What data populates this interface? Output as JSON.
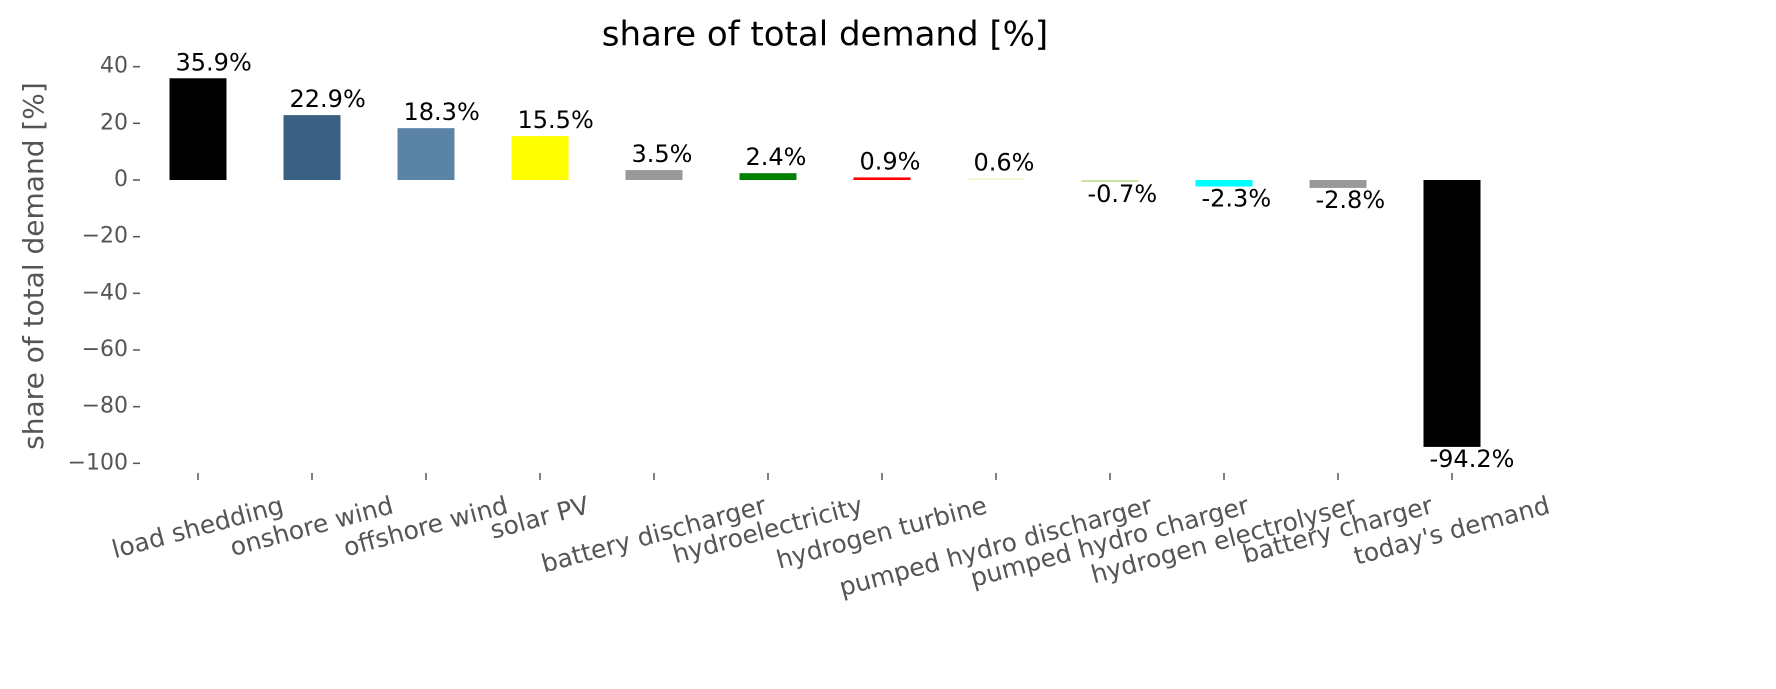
{
  "chart_data": {
    "type": "bar",
    "title": "share of total demand [%]",
    "y_label": "share of total demand [%]",
    "categories": [
      "load shedding",
      "onshore wind",
      "offshore wind",
      "solar PV",
      "battery discharger",
      "hydroelectricity",
      "hydrogen turbine",
      "pumped hydro discharger",
      "pumped hydro charger",
      "hydrogen electrolyser",
      "battery charger",
      "today's demand"
    ],
    "values": [
      35.9,
      22.9,
      18.3,
      15.5,
      3.5,
      2.4,
      0.9,
      0.6,
      -0.7,
      -2.3,
      -2.8,
      -94.2
    ],
    "value_labels": [
      "35.9%",
      "22.9%",
      "18.3%",
      "15.5%",
      "3.5%",
      "2.4%",
      "0.9%",
      "0.6%",
      "-0.7%",
      "-2.3%",
      "-2.8%",
      "-94.2%"
    ],
    "colors": [
      "#000000",
      "#3b6182",
      "#5b83a6",
      "#ffff00",
      "#999999",
      "#008000",
      "#ff0000",
      "#eef7d0",
      "#c8e6a0",
      "#00ffff",
      "#999999",
      "#000000"
    ],
    "ylim": [
      -102,
      42
    ],
    "yticks": [
      {
        "value": -100,
        "label": "−100"
      },
      {
        "value": -80,
        "label": "−80"
      },
      {
        "value": -60,
        "label": "−60"
      },
      {
        "value": -40,
        "label": "−40"
      },
      {
        "value": -20,
        "label": "−20"
      },
      0,
      20,
      40
    ],
    "grid": false
  }
}
